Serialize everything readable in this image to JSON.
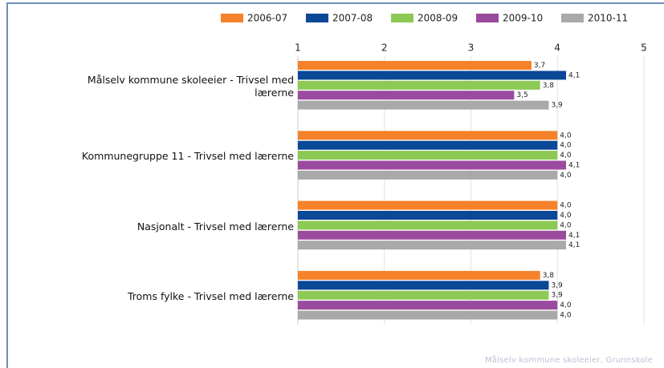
{
  "chart_data": {
    "type": "bar",
    "orientation": "horizontal",
    "categories": [
      "Målselv kommune skoleeier - Trivsel med lærerne",
      "Kommunegruppe 11 - Trivsel med lærerne",
      "Nasjonalt - Trivsel med lærerne",
      "Troms fylke - Trivsel med lærerne"
    ],
    "series": [
      {
        "name": "2006-07",
        "color": "#f5822a",
        "values": [
          3.7,
          4.0,
          4.0,
          3.8
        ],
        "value_labels": [
          "3,7",
          "4,0",
          "4,0",
          "3,8"
        ]
      },
      {
        "name": "2007-08",
        "color": "#0b4896",
        "values": [
          4.1,
          4.0,
          4.0,
          3.9
        ],
        "value_labels": [
          "4,1",
          "4,0",
          "4,0",
          "3,9"
        ]
      },
      {
        "name": "2008-09",
        "color": "#8dc955",
        "values": [
          3.8,
          4.0,
          4.0,
          3.9
        ],
        "value_labels": [
          "3,8",
          "4,0",
          "4,0",
          "3,9"
        ]
      },
      {
        "name": "2009-10",
        "color": "#9b4b9d",
        "values": [
          3.5,
          4.1,
          4.1,
          4.0
        ],
        "value_labels": [
          "3,5",
          "4,1",
          "4,1",
          "4,0"
        ]
      },
      {
        "name": "2010-11",
        "color": "#a9a9a9",
        "values": [
          3.9,
          4.0,
          4.1,
          4.0
        ],
        "value_labels": [
          "3,9",
          "4,0",
          "4,1",
          "4,0"
        ]
      }
    ],
    "xlim": [
      1,
      5
    ],
    "xticks": [
      1,
      2,
      3,
      4,
      5
    ],
    "grid": true,
    "legend": "top-right",
    "source": "Målselv kommune skoleeier, Grunnskole"
  }
}
